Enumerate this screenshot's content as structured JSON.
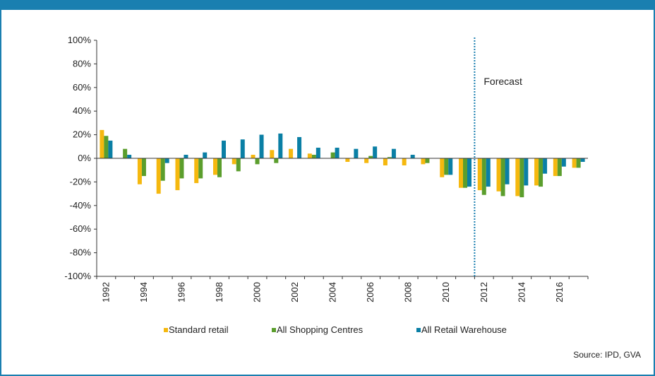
{
  "colors": {
    "frame": "#1a7fb0",
    "standard_retail": "#f5b80f",
    "shopping_centres": "#5b9e2d",
    "retail_warehouse": "#0a7fa5",
    "forecast_line": "#1a7fb0"
  },
  "source": "Source: IPD, GVA",
  "chart_data": {
    "type": "bar",
    "categories": [
      "1992",
      "1993",
      "1994",
      "1995",
      "1996",
      "1997",
      "1998",
      "1999",
      "2000",
      "2001",
      "2002",
      "2003",
      "2004",
      "2005",
      "2006",
      "2007",
      "2008",
      "2009",
      "2010",
      "2011",
      "2012",
      "2013",
      "2014",
      "2015",
      "2016",
      "2017"
    ],
    "x_tick_labels": [
      "1992",
      "1994",
      "1996",
      "1998",
      "2000",
      "2002",
      "2004",
      "2006",
      "2008",
      "2010",
      "2012",
      "2014",
      "2016"
    ],
    "y_tick_labels": [
      "100%",
      "80%",
      "60%",
      "40%",
      "20%",
      "0%",
      "-20%",
      "-40%",
      "-60%",
      "-80%",
      "-100%"
    ],
    "ylim": [
      -100,
      100
    ],
    "y_unit": "%",
    "series": [
      {
        "name": "Standard retail",
        "color": "#f5b80f",
        "values": [
          24,
          0,
          -22,
          -30,
          -27,
          -21,
          -14,
          -5,
          3,
          7,
          8,
          4,
          0,
          -3,
          -4,
          -6,
          -6,
          -5,
          -16,
          -25,
          -27,
          -28,
          -32,
          -23,
          -15,
          -8
        ]
      },
      {
        "name": "All Shopping Centres",
        "color": "#5b9e2d",
        "values": [
          19,
          8,
          -15,
          -19,
          -17,
          -17,
          -16,
          -11,
          -5,
          -4,
          0,
          3,
          5,
          0,
          2,
          1,
          0,
          -4,
          -14,
          -25,
          -31,
          -32,
          -33,
          -24,
          -15,
          -8
        ]
      },
      {
        "name": "All Retail Warehouse",
        "color": "#0a7fa5",
        "values": [
          15,
          3,
          0,
          -4,
          3,
          5,
          15,
          16,
          20,
          21,
          18,
          9,
          9,
          8,
          10,
          8,
          3,
          0,
          -14,
          -24,
          -24,
          -22,
          -23,
          -13,
          -7,
          -3
        ]
      }
    ],
    "forecast": {
      "label": "Forecast",
      "after_category": "2011"
    },
    "legend_position": "bottom",
    "grid": false
  }
}
